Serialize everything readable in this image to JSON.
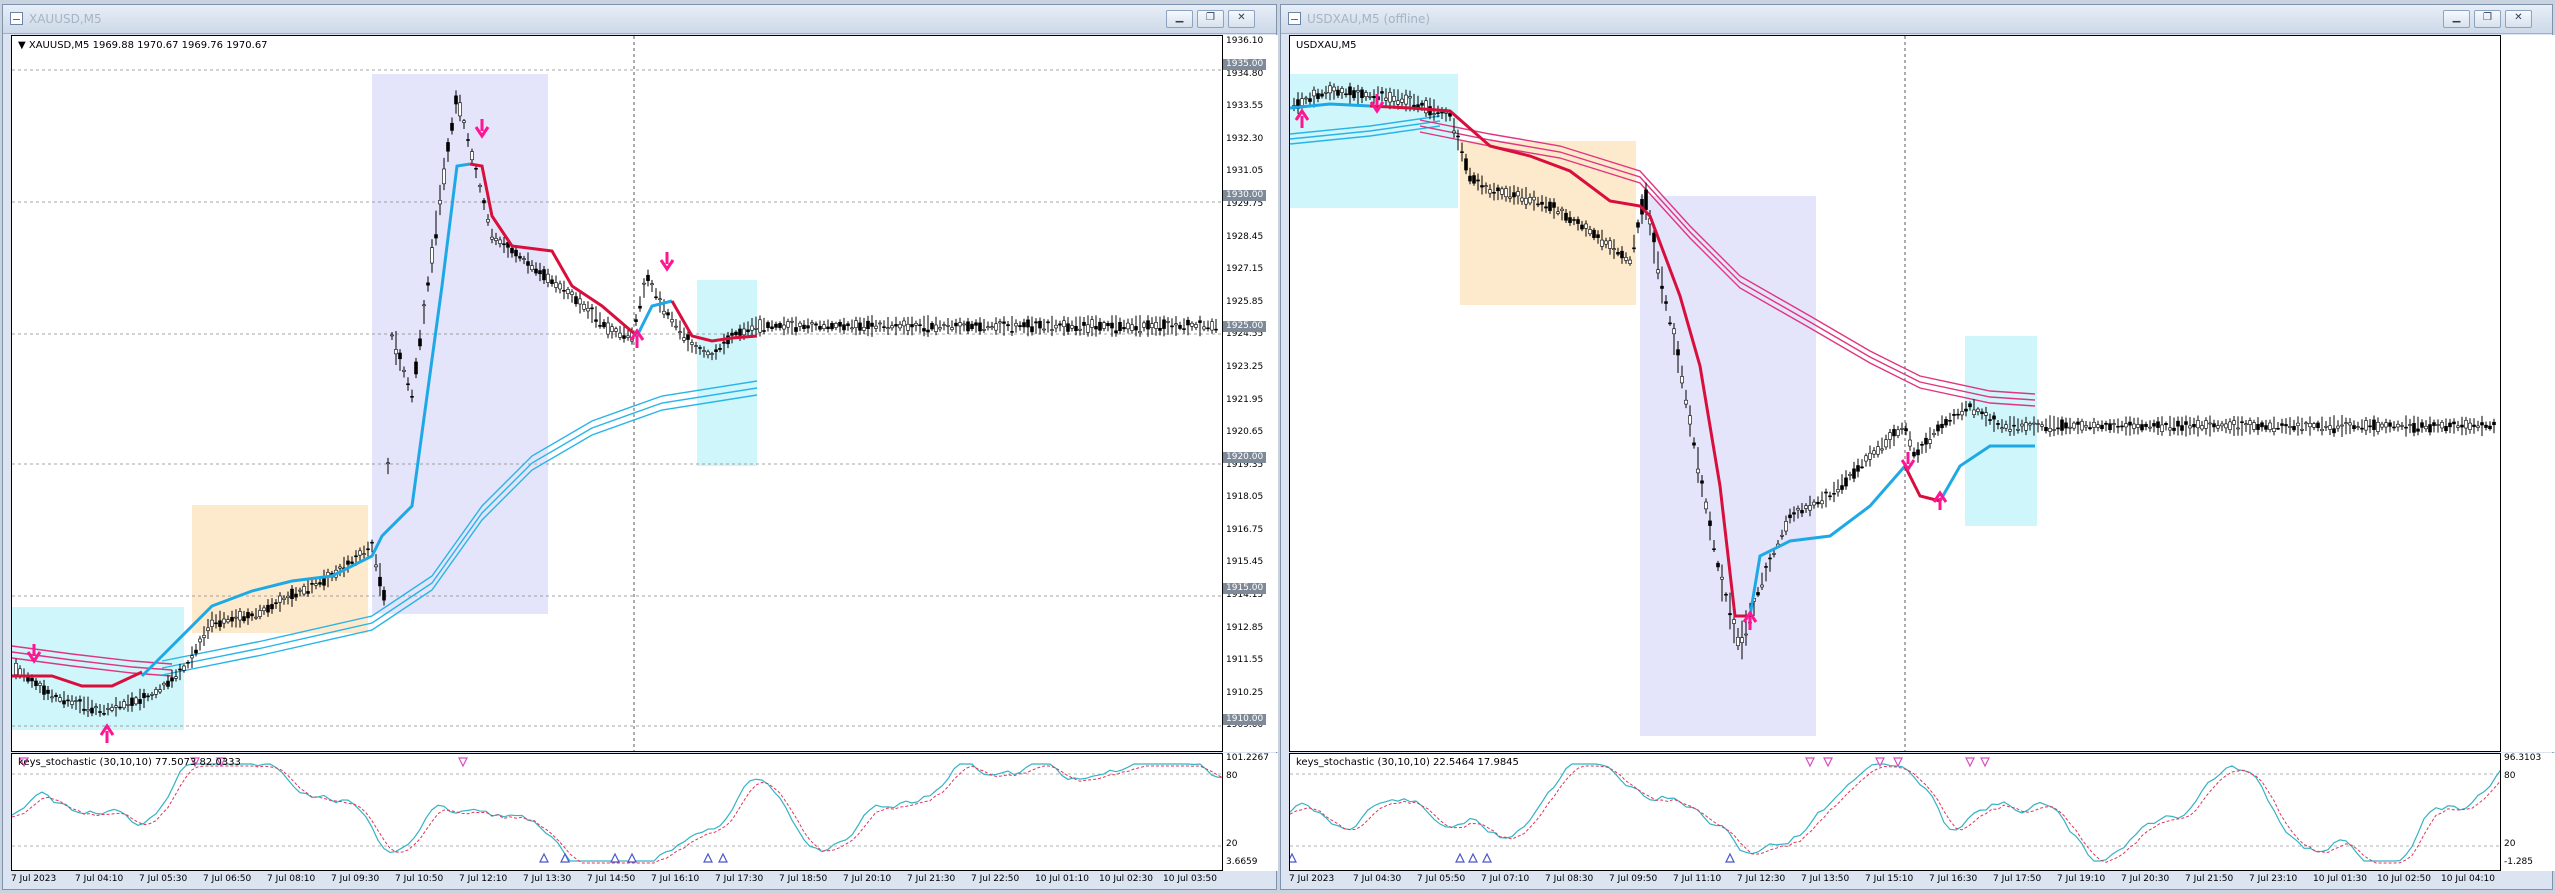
{
  "windows": [
    {
      "title": "XAUUSD,M5",
      "symbol_info": "▼ XAUUSD,M5  1969.88 1970.67 1969.76 1970.67",
      "price_ticks": [
        "1936.10",
        "1934.80",
        "1933.55",
        "1932.30",
        "1931.05",
        "1929.75",
        "1928.45",
        "1927.15",
        "1925.85",
        "1924.55",
        "1923.25",
        "1921.95",
        "1920.65",
        "1919.35",
        "1918.05",
        "1916.75",
        "1915.45",
        "1914.15",
        "1912.85",
        "1911.55",
        "1910.25",
        "1909.00"
      ],
      "price_boxes": [
        "1935.00",
        "1930.00",
        "1925.00",
        "1920.00",
        "1915.00",
        "1910.00"
      ],
      "indicator_label": "keys_stochastic (30,10,10) 77.5073 82.0333",
      "indicator_ticks": [
        "101.2267",
        "80",
        "20",
        "3.6659"
      ],
      "time_labels": [
        "7 Jul 2023",
        "7 Jul 04:10",
        "7 Jul 05:30",
        "7 Jul 06:50",
        "7 Jul 08:10",
        "7 Jul 09:30",
        "7 Jul 10:50",
        "7 Jul 12:10",
        "7 Jul 13:30",
        "7 Jul 14:50",
        "7 Jul 16:10",
        "7 Jul 17:30",
        "7 Jul 18:50",
        "7 Jul 20:10",
        "7 Jul 21:30",
        "7 Jul 22:50",
        "10 Jul 01:10",
        "10 Jul 02:30",
        "10 Jul 03:50"
      ]
    },
    {
      "title": "USDXAU,M5 (offline)",
      "symbol_info": "USDXAU,M5",
      "price_ticks": [],
      "price_boxes": [],
      "indicator_label": "keys_stochastic (30,10,10) 22.5464 17.9845",
      "indicator_ticks": [
        "96.3103",
        "80",
        "20",
        "-1.285"
      ],
      "time_labels": [
        "7 Jul 2023",
        "7 Jul 04:30",
        "7 Jul 05:50",
        "7 Jul 07:10",
        "7 Jul 08:30",
        "7 Jul 09:50",
        "7 Jul 11:10",
        "7 Jul 12:30",
        "7 Jul 13:50",
        "7 Jul 15:10",
        "7 Jul 16:30",
        "7 Jul 17:50",
        "7 Jul 19:10",
        "7 Jul 20:30",
        "7 Jul 21:50",
        "7 Jul 23:10",
        "10 Jul 01:30",
        "10 Jul 02:50",
        "10 Jul 04:10"
      ]
    }
  ],
  "colors": {
    "stop_line_up": "#1ea9e6",
    "stop_line_down": "#d80f3c",
    "ma_blue": "#29b4e8",
    "ma_pink": "#e0357f",
    "arrow": "#ff1493",
    "zone_blue": "#cff6fb",
    "zone_orange": "#fde9cc",
    "zone_lavender": "#e4e4fa"
  },
  "window_buttons": [
    "minimize",
    "restore",
    "close"
  ]
}
